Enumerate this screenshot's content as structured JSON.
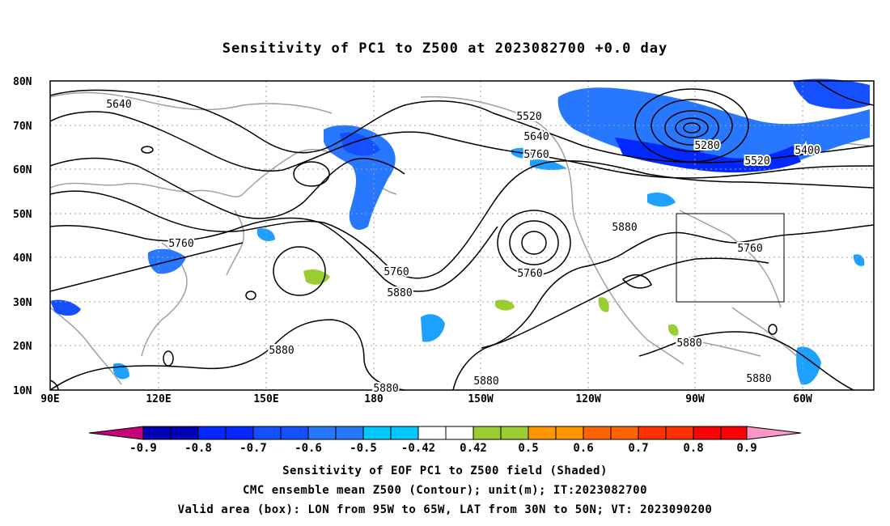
{
  "title": "Sensitivity of PC1 to Z500 at 2023082700 +0.0 day",
  "lat_labels": [
    "80N",
    "70N",
    "60N",
    "50N",
    "40N",
    "30N",
    "20N",
    "10N"
  ],
  "lon_labels": [
    "90E",
    "120E",
    "150E",
    "180",
    "150W",
    "120W",
    "90W",
    "60W"
  ],
  "contour_labels": [
    "5640",
    "5520",
    "5640",
    "5760",
    "5280",
    "5520",
    "5400",
    "5760",
    "5760",
    "5880",
    "5880",
    "5760",
    "5760",
    "5880",
    "5880",
    "5880",
    "5880",
    "5880"
  ],
  "colorbar": {
    "labels": [
      "-0.9",
      "-0.8",
      "-0.7",
      "-0.6",
      "-0.5",
      "-0.42",
      "0.42",
      "0.5",
      "0.6",
      "0.7",
      "0.8",
      "0.9"
    ],
    "colors": [
      "#c8007a",
      "#0000b4",
      "#0028ff",
      "#1450ff",
      "#2878ff",
      "#1ea0ff",
      "#00c8ff",
      "#ffffff",
      "#9acd32",
      "#ff9600",
      "#ff6400",
      "#ff3200",
      "#ff0000",
      "#ff96c8"
    ]
  },
  "footer": {
    "line1": "Sensitivity of EOF PC1 to Z500 field (Shaded)",
    "line2": "CMC ensemble mean Z500 (Contour); unit(m); IT:2023082700",
    "line3": "Valid area (box): LON from 95W to 65W, LAT from 30N to 50N; VT: 2023090200"
  }
}
